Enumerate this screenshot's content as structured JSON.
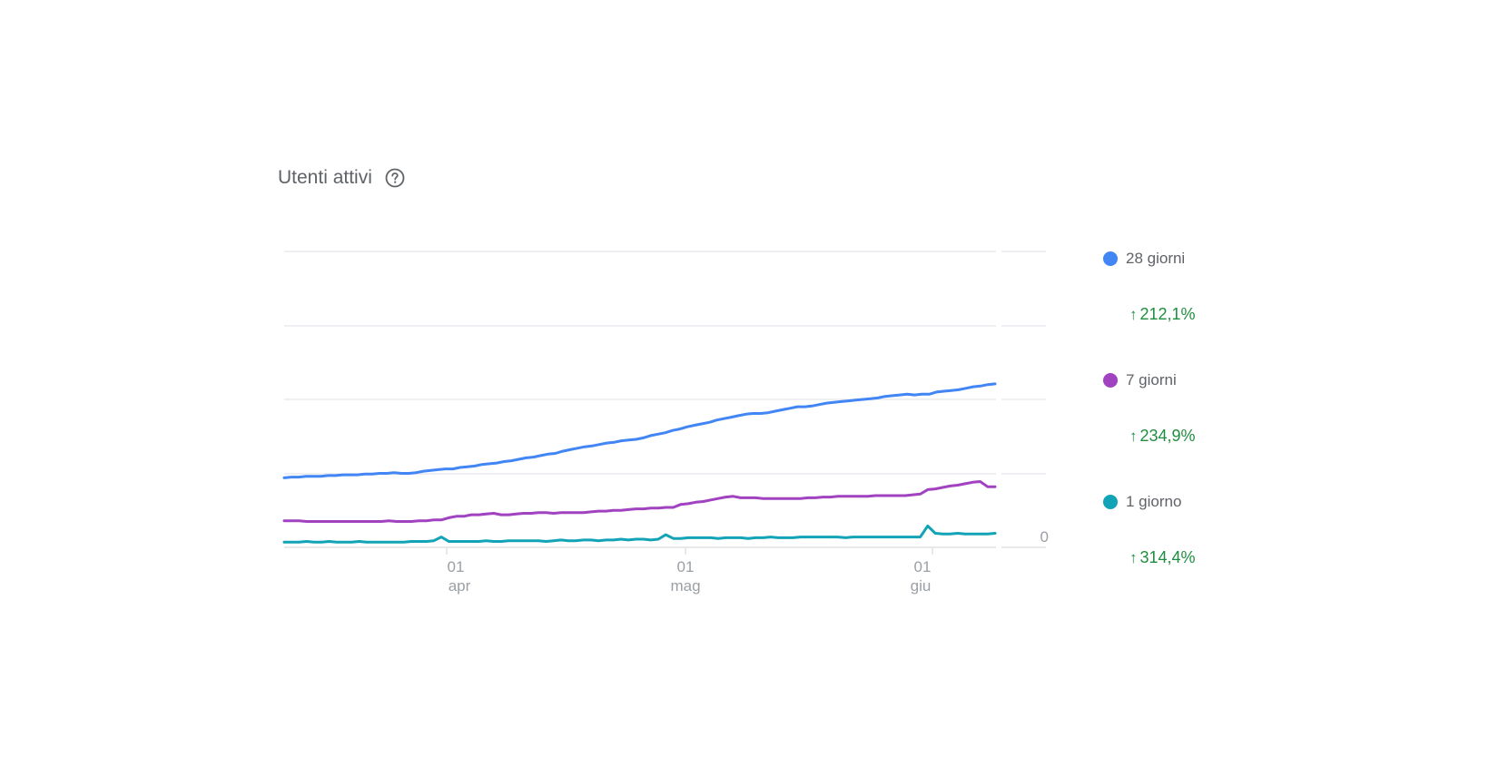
{
  "header": {
    "title": "Utenti attivi",
    "help_icon": "help-circle-icon"
  },
  "legend": [
    {
      "label": "28 giorni",
      "color": "#4285f4",
      "delta": "212,1%",
      "delta_icon": "arrow-up-icon",
      "delta_color": "#1e8e3e"
    },
    {
      "label": "7 giorni",
      "color": "#a142c0",
      "delta": "234,9%",
      "delta_icon": "arrow-up-icon",
      "delta_color": "#1e8e3e"
    },
    {
      "label": "1 giorno",
      "color": "#12a4b6",
      "delta": "314,4%",
      "delta_icon": "arrow-up-icon",
      "delta_color": "#1e8e3e"
    }
  ],
  "axis": {
    "y_zero_label": "0",
    "x_ticks": [
      {
        "day": "01",
        "month": "apr"
      },
      {
        "day": "01",
        "month": "mag"
      },
      {
        "day": "01",
        "month": "giu"
      }
    ]
  },
  "chart_data": {
    "type": "line",
    "title": "Utenti attivi",
    "xlabel": "",
    "ylabel": "",
    "x_range": [
      "~12 mar",
      "~09 giu"
    ],
    "x_tick_labels": [
      "01 apr",
      "01 mag",
      "01 giu"
    ],
    "y_tick_labels": [
      "0"
    ],
    "ylim": [
      0,
      400
    ],
    "grid": true,
    "legend_position": "right",
    "note": "y values in relative gridline units (gridlines at 100, 200, 300, 400); absolute values not shown on axis",
    "series": [
      {
        "name": "28 giorni",
        "color": "#4285f4",
        "change": "+212,1%",
        "values": [
          94,
          95,
          95,
          96,
          96,
          96,
          97,
          97,
          98,
          98,
          98,
          99,
          99,
          100,
          100,
          101,
          100,
          100,
          101,
          103,
          104,
          105,
          106,
          106,
          108,
          109,
          110,
          112,
          113,
          114,
          116,
          117,
          119,
          121,
          122,
          124,
          126,
          127,
          130,
          132,
          134,
          136,
          137,
          139,
          141,
          142,
          144,
          145,
          146,
          148,
          151,
          153,
          155,
          158,
          160,
          163,
          165,
          167,
          169,
          172,
          174,
          176,
          178,
          180,
          181,
          181,
          182,
          184,
          186,
          188,
          190,
          190,
          191,
          193,
          195,
          196,
          197,
          198,
          199,
          200,
          201,
          202,
          204,
          205,
          206,
          207,
          206,
          207,
          207,
          210,
          211,
          212,
          213,
          215,
          217,
          218,
          220,
          221
        ]
      },
      {
        "name": "7 giorni",
        "color": "#a142c0",
        "change": "+234,9%",
        "values": [
          36,
          36,
          36,
          35,
          35,
          35,
          35,
          35,
          35,
          35,
          35,
          35,
          35,
          35,
          36,
          35,
          35,
          35,
          36,
          36,
          37,
          37,
          40,
          42,
          42,
          44,
          44,
          45,
          46,
          44,
          44,
          45,
          46,
          46,
          47,
          47,
          46,
          47,
          47,
          47,
          47,
          48,
          49,
          49,
          50,
          50,
          51,
          52,
          52,
          53,
          53,
          54,
          54,
          58,
          59,
          61,
          62,
          64,
          66,
          68,
          69,
          67,
          67,
          67,
          66,
          66,
          66,
          66,
          66,
          66,
          67,
          67,
          68,
          68,
          69,
          69,
          69,
          69,
          69,
          70,
          70,
          70,
          70,
          70,
          71,
          72,
          78,
          79,
          81,
          83,
          84,
          86,
          88,
          89,
          82,
          82
        ]
      },
      {
        "name": "1 giorno",
        "color": "#12a4b6",
        "change": "+314,4%",
        "values": [
          7,
          7,
          7,
          8,
          7,
          7,
          8,
          7,
          7,
          7,
          8,
          7,
          7,
          7,
          7,
          7,
          7,
          8,
          8,
          8,
          9,
          14,
          8,
          8,
          8,
          8,
          8,
          9,
          8,
          8,
          9,
          9,
          9,
          9,
          9,
          8,
          9,
          10,
          9,
          9,
          10,
          10,
          9,
          10,
          10,
          11,
          10,
          11,
          11,
          10,
          11,
          17,
          12,
          12,
          13,
          13,
          13,
          13,
          12,
          13,
          13,
          13,
          12,
          13,
          13,
          14,
          13,
          13,
          13,
          14,
          14,
          14,
          14,
          14,
          14,
          13,
          14,
          14,
          14,
          14,
          14,
          14,
          14,
          14,
          14,
          14,
          29,
          19,
          18,
          18,
          19,
          18,
          18,
          18,
          18,
          19
        ]
      }
    ]
  }
}
